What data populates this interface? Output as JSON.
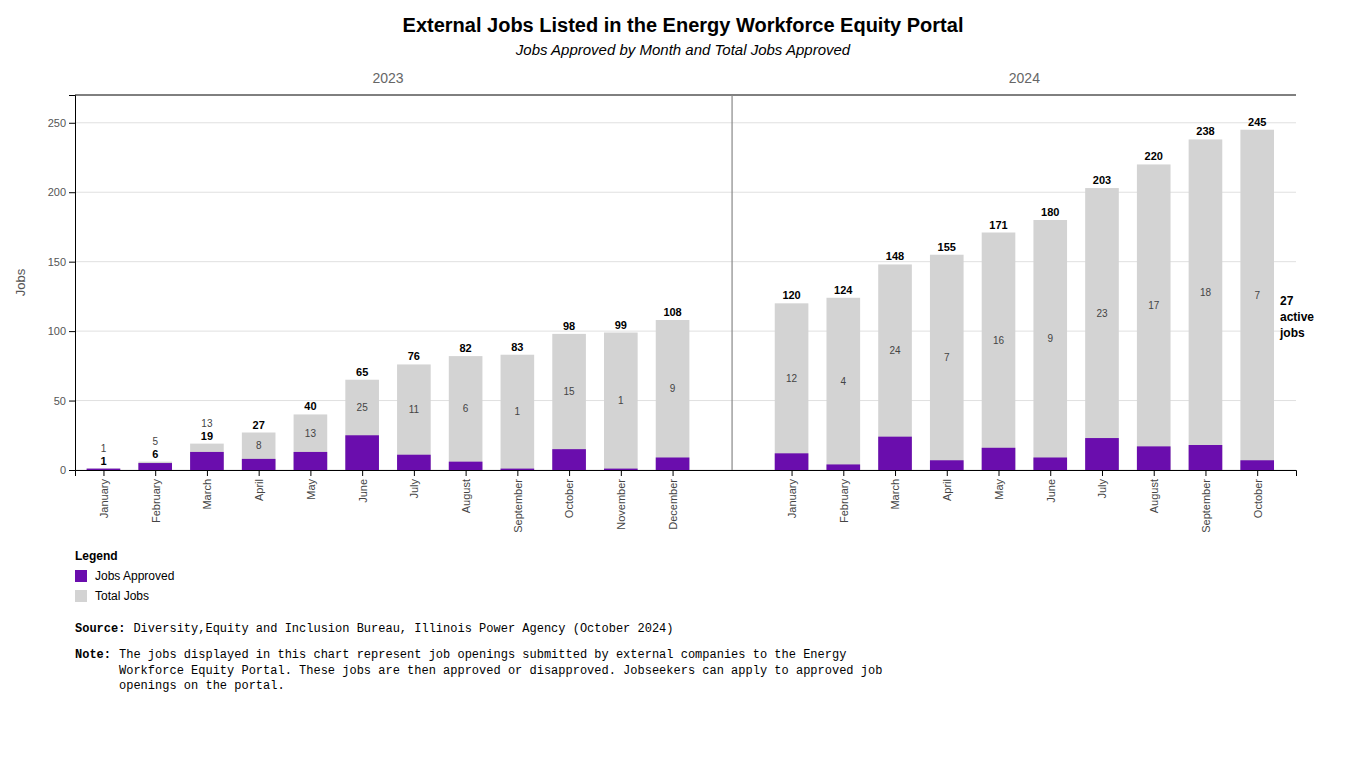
{
  "chart_data": {
    "type": "bar",
    "title": "External Jobs Listed in the Energy Workforce Equity Portal",
    "subtitle": "Jobs Approved by Month and Total Jobs Approved",
    "categories": [
      "January",
      "February",
      "March",
      "April",
      "May",
      "June",
      "July",
      "August",
      "September",
      "October",
      "November",
      "December",
      "January",
      "February",
      "March",
      "April",
      "May",
      "June",
      "July",
      "August",
      "September",
      "October"
    ],
    "category_groups": [
      {
        "label": "2023",
        "size": 12
      },
      {
        "label": "2024",
        "size": 10
      }
    ],
    "series": [
      {
        "name": "Jobs Approved",
        "color": "#6a0dad",
        "values": [
          1,
          5,
          13,
          8,
          13,
          25,
          11,
          6,
          1,
          15,
          1,
          9,
          12,
          4,
          24,
          7,
          16,
          9,
          23,
          17,
          18,
          7
        ]
      },
      {
        "name": "Total Jobs",
        "color": "#d3d3d3",
        "values": [
          1,
          6,
          19,
          27,
          40,
          65,
          76,
          82,
          83,
          98,
          99,
          108,
          120,
          124,
          148,
          155,
          171,
          180,
          203,
          220,
          238,
          245
        ]
      }
    ],
    "stacked": false,
    "data_labels": true,
    "ylabel": "Jobs",
    "ylim": [
      0,
      270
    ],
    "yticks": [
      0,
      50,
      100,
      150,
      200,
      250
    ],
    "grid": true,
    "legend": "bottom left",
    "legend_title": "Legend",
    "annotation": "27\nactive\njobs",
    "source_label": "Source:",
    "source": "Diversity,Equity and Inclusion Bureau, Illinois Power Agency (October 2024)",
    "note_label": "Note:",
    "note": "The jobs displayed in this chart represent job openings submitted by external companies to the Energy\nWorkforce Equity Portal. These jobs are then approved or disapproved. Jobseekers can apply to approved job\nopenings on the portal."
  }
}
